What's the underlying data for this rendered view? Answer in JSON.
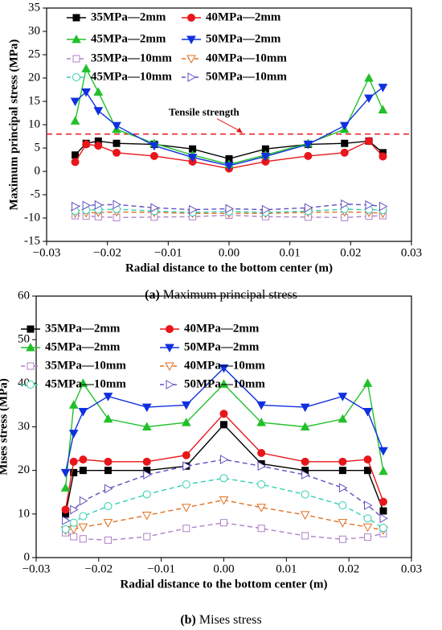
{
  "chart_data": [
    {
      "type": "line",
      "caption_label": "(a)",
      "caption": "Maximum principal stress",
      "xlabel": "Radial distance to the  bottom center (m)",
      "ylabel": "Maximum principal stress (MPa)",
      "x": [
        -0.0253,
        -0.0235,
        -0.0215,
        -0.0185,
        -0.0123,
        -0.006,
        0,
        0.006,
        0.013,
        0.019,
        0.023,
        0.0253
      ],
      "xlim": [
        -0.03,
        0.03
      ],
      "xticks": [
        {
          "value": -0.03,
          "label": "−0.03"
        },
        {
          "value": -0.02,
          "label": "−0.02"
        },
        {
          "value": -0.01,
          "label": "−0.01"
        },
        {
          "value": 0,
          "label": "0.00"
        },
        0.01,
        0.02,
        0.03
      ],
      "ylim": [
        -15,
        35
      ],
      "yticks": [
        -15,
        -10,
        -5,
        0,
        5,
        10,
        15,
        20,
        25,
        30,
        35
      ],
      "legend": "top",
      "reference_line": {
        "value": 8,
        "label": "Tensile strength",
        "color": "#e8161a"
      },
      "series": [
        {
          "name": "35MPa—2mm",
          "color": "#000000",
          "marker": "square",
          "filled": true,
          "dashed": false,
          "values": [
            3.5,
            6,
            6.5,
            6,
            5.8,
            4.8,
            2.7,
            4.8,
            5.8,
            6,
            6.5,
            4
          ]
        },
        {
          "name": "40MPa—2mm",
          "color": "#e8161a",
          "marker": "circle",
          "filled": true,
          "dashed": false,
          "values": [
            2,
            5.8,
            5.5,
            4,
            3.3,
            2.1,
            0.6,
            2.1,
            3.3,
            4,
            6.5,
            3.2
          ]
        },
        {
          "name": "45MPa—2mm",
          "color": "#22c02a",
          "marker": "triangle-up",
          "filled": true,
          "dashed": false,
          "values": [
            10.8,
            22,
            17,
            9,
            6,
            3.5,
            1.5,
            3.5,
            6,
            9,
            20,
            13.2
          ]
        },
        {
          "name": "50MPa—2mm",
          "color": "#1030e0",
          "marker": "triangle-down",
          "filled": true,
          "dashed": false,
          "values": [
            15,
            17,
            13,
            9.8,
            5.5,
            3,
            1.2,
            3.2,
            5.8,
            9.8,
            15.7,
            18
          ]
        },
        {
          "name": "35MPa—10mm",
          "color": "#b080c8",
          "marker": "square",
          "filled": false,
          "dashed": true,
          "values": [
            -9.5,
            -9.6,
            -9.7,
            -9.9,
            -9.8,
            -9.7,
            -9.4,
            -9.7,
            -9.8,
            -9.9,
            -9.6,
            -9.5
          ]
        },
        {
          "name": "40MPa—10mm",
          "color": "#e07020",
          "marker": "triangle-down",
          "filled": false,
          "dashed": true,
          "values": [
            -9,
            -8.9,
            -8.8,
            -8.7,
            -8.8,
            -9,
            -9,
            -9,
            -8.8,
            -8.7,
            -8.8,
            -9
          ]
        },
        {
          "name": "45MPa—10mm",
          "color": "#30d0b0",
          "marker": "circle",
          "filled": false,
          "dashed": true,
          "values": [
            -8.5,
            -8.3,
            -8.2,
            -8.1,
            -8.5,
            -8.8,
            -8.6,
            -8.8,
            -8.5,
            -8.1,
            -8.2,
            -8.3
          ]
        },
        {
          "name": "50MPa—10mm",
          "color": "#6050c0",
          "marker": "triangle-right",
          "filled": false,
          "dashed": true,
          "values": [
            -7.5,
            -7.3,
            -7.2,
            -7.1,
            -7.8,
            -8.2,
            -8,
            -8.2,
            -7.8,
            -7,
            -7.2,
            -7.5
          ]
        }
      ]
    },
    {
      "type": "line",
      "caption_label": "(b)",
      "caption": "Mises stress",
      "xlabel": "Radial distance to the  bottom center (m)",
      "ylabel": "Mises stress (MPa)",
      "x": [
        -0.0253,
        -0.024,
        -0.0225,
        -0.0185,
        -0.0123,
        -0.006,
        0,
        0.006,
        0.013,
        0.019,
        0.023,
        0.0255
      ],
      "xlim": [
        -0.03,
        0.03
      ],
      "xticks": [
        {
          "value": -0.03,
          "label": "−0.03"
        },
        {
          "value": -0.02,
          "label": "−0.02"
        },
        {
          "value": -0.01,
          "label": "−0.01"
        },
        {
          "value": 0,
          "label": "0.00"
        },
        0.01,
        0.02,
        0.03
      ],
      "ylim": [
        0,
        60
      ],
      "yticks": [
        0,
        10,
        20,
        30,
        40,
        50,
        60
      ],
      "legend": "top",
      "series": [
        {
          "name": "35MPa—2mm",
          "color": "#000000",
          "marker": "square",
          "filled": true,
          "dashed": false,
          "values": [
            10,
            19.5,
            20,
            20,
            20,
            21,
            30.5,
            21.5,
            20,
            20,
            20,
            10.7
          ]
        },
        {
          "name": "40MPa—2mm",
          "color": "#e8161a",
          "marker": "circle",
          "filled": true,
          "dashed": false,
          "values": [
            11,
            22,
            22.5,
            22,
            22,
            23.5,
            33,
            24,
            22,
            22,
            22.5,
            12.8
          ]
        },
        {
          "name": "45MPa—2mm",
          "color": "#22c02a",
          "marker": "triangle-up",
          "filled": true,
          "dashed": false,
          "values": [
            16,
            35,
            40,
            31.8,
            30,
            31,
            39.8,
            31,
            30,
            31.8,
            40,
            19.8
          ]
        },
        {
          "name": "50MPa—2mm",
          "color": "#1030e0",
          "marker": "triangle-down",
          "filled": true,
          "dashed": false,
          "values": [
            19.5,
            28.5,
            33.5,
            37,
            34.5,
            35,
            43.5,
            35,
            34.5,
            37,
            33.5,
            24.5
          ]
        },
        {
          "name": "35MPa—10mm",
          "color": "#b080c8",
          "marker": "square",
          "filled": false,
          "dashed": true,
          "values": [
            5.7,
            4.8,
            4.3,
            4,
            4.8,
            6.7,
            8,
            6.7,
            5,
            4.2,
            4.7,
            5.5
          ]
        },
        {
          "name": "40MPa—10mm",
          "color": "#e07020",
          "marker": "triangle-down",
          "filled": false,
          "dashed": true,
          "values": [
            6.3,
            6.5,
            7,
            8,
            9.7,
            11.5,
            13.2,
            11.5,
            9.8,
            8,
            7,
            6.3
          ]
        },
        {
          "name": "45MPa—10mm",
          "color": "#30d0b0",
          "marker": "circle",
          "filled": false,
          "dashed": true,
          "values": [
            6.5,
            8,
            9.5,
            11.8,
            14.5,
            16.8,
            18.2,
            16.8,
            14.5,
            12,
            9,
            6.8
          ]
        },
        {
          "name": "50MPa—10mm",
          "color": "#6050c0",
          "marker": "triangle-right",
          "filled": false,
          "dashed": true,
          "values": [
            8.5,
            11,
            13,
            15.8,
            19,
            21,
            22.5,
            21,
            19,
            16,
            12,
            9
          ]
        }
      ]
    }
  ]
}
